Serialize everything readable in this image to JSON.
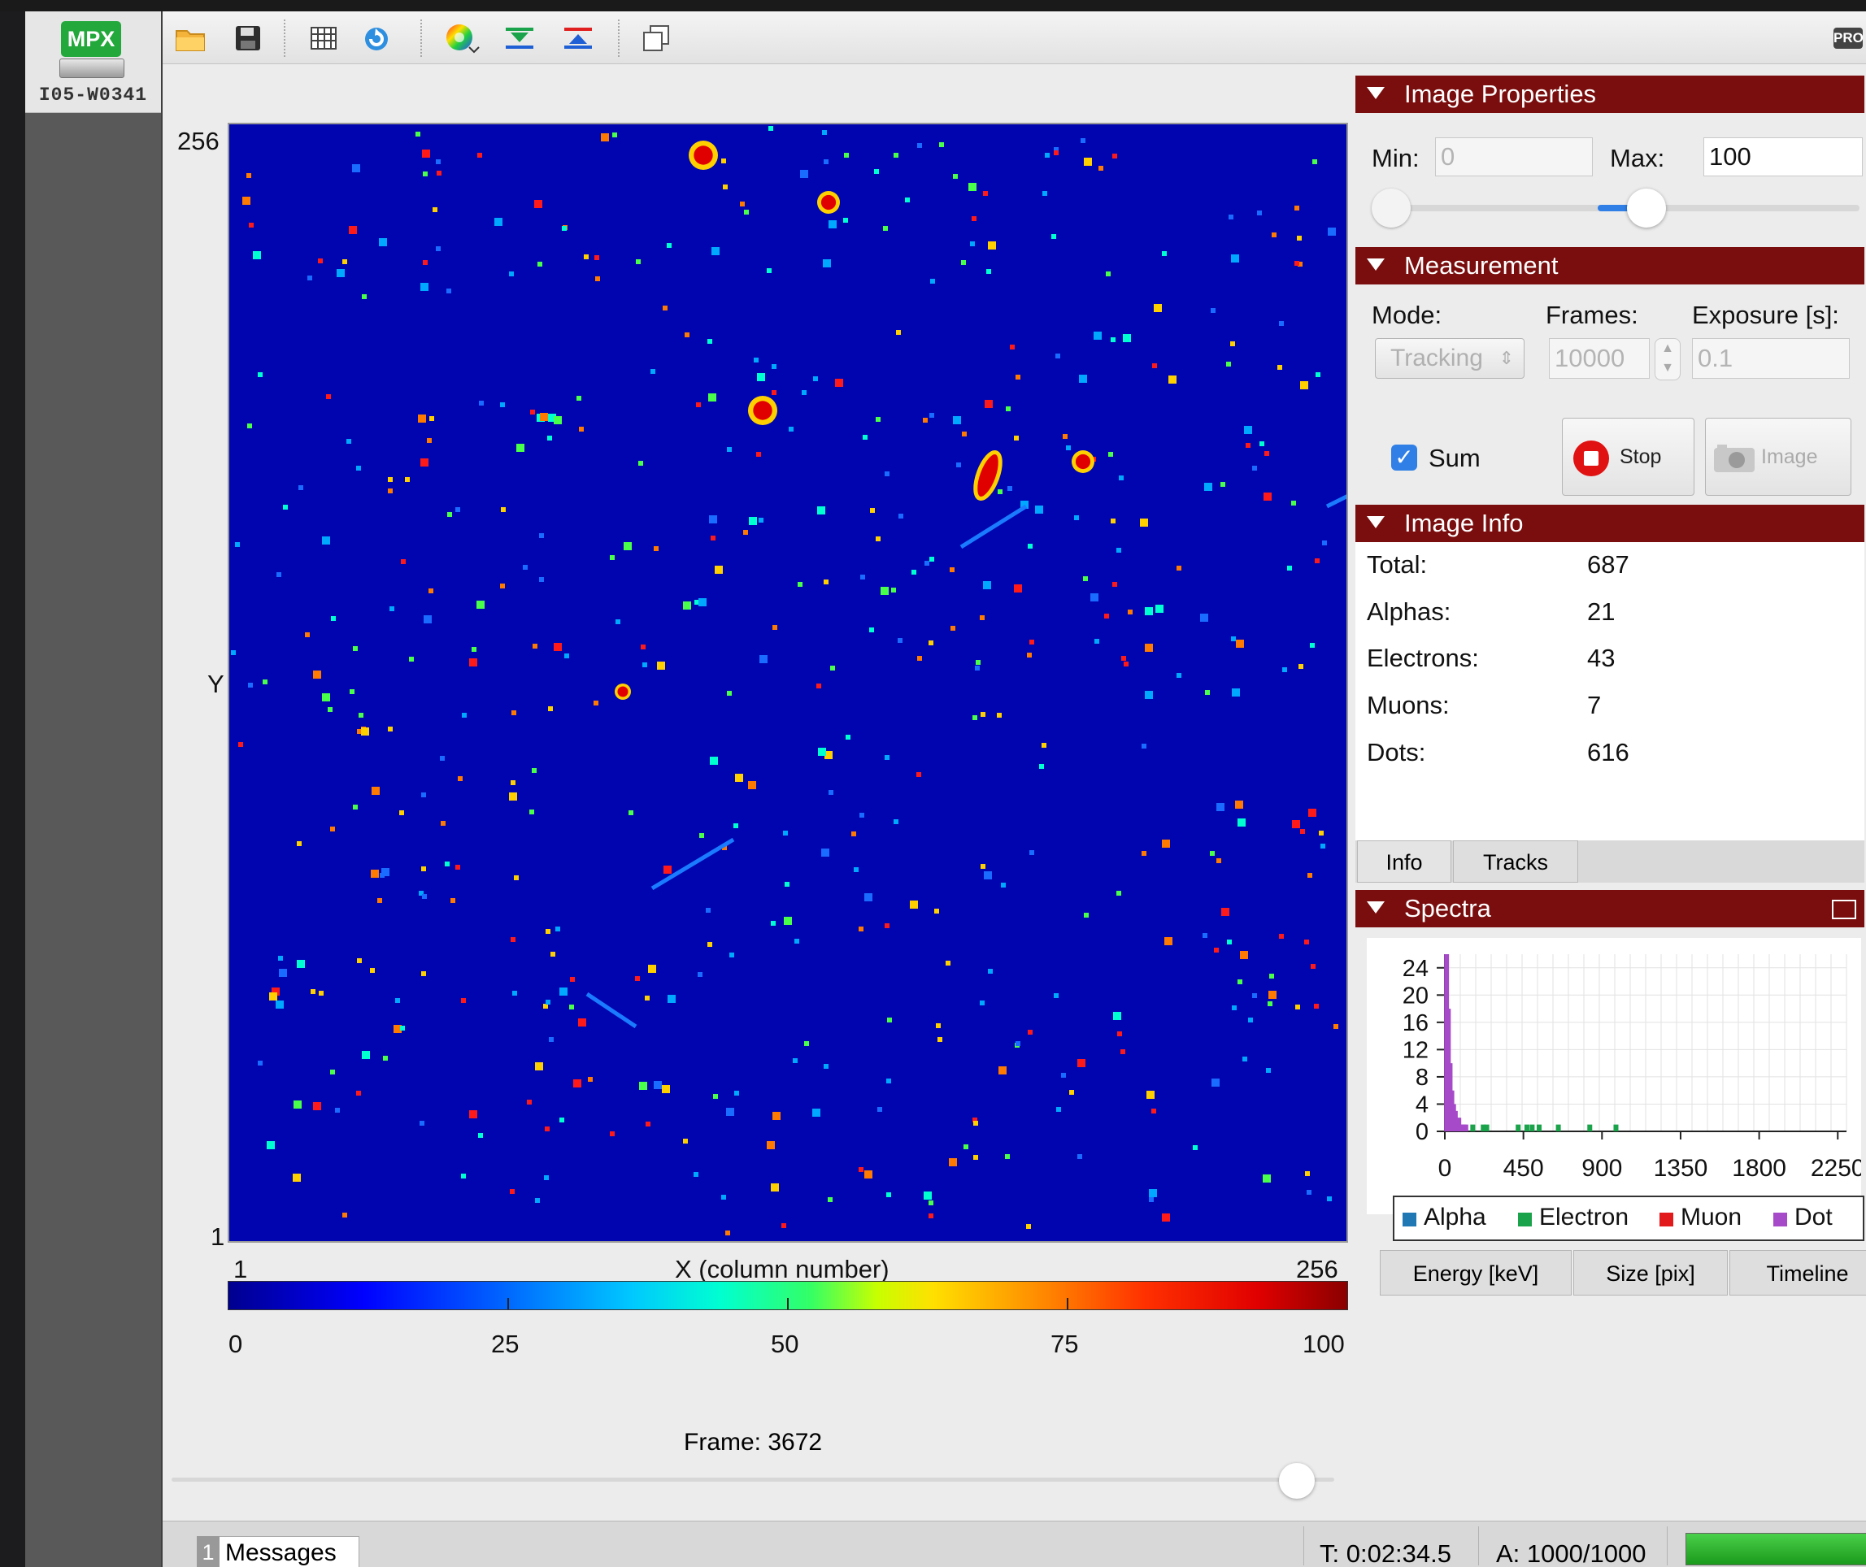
{
  "device": {
    "badge": "MPX",
    "id": "I05-W0341"
  },
  "toolbar": {
    "icons": [
      "open-folder-icon",
      "save-icon",
      "grid-icon",
      "refresh-icon",
      "color-map-icon",
      "fit-down-icon",
      "fit-up-icon",
      "copy-windows-icon"
    ],
    "pro_badge": "PRO"
  },
  "plot": {
    "y_max": "256",
    "y_min": "1",
    "y_label": "Y",
    "x_min": "1",
    "x_max": "256",
    "x_label": "X (column number)",
    "colorbar_ticks": [
      "0",
      "25",
      "50",
      "75",
      "100"
    ],
    "frame_label": "Frame: 3672",
    "frame_position": 0.968
  },
  "image_properties": {
    "title": "Image Properties",
    "min_label": "Min:",
    "min_value": "0",
    "max_label": "Max:",
    "max_value": "100",
    "range_low": 0.0,
    "range_high": 0.57
  },
  "measurement": {
    "title": "Measurement",
    "mode_label": "Mode:",
    "mode_value": "Tracking",
    "frames_label": "Frames:",
    "frames_value": "10000",
    "exposure_label": "Exposure [s]:",
    "exposure_value": "0.1",
    "sum_label": "Sum",
    "sum_checked": true,
    "stop_label": "Stop",
    "image_label": "Image"
  },
  "image_info": {
    "title": "Image Info",
    "rows": [
      {
        "label": "Total:",
        "value": "687"
      },
      {
        "label": "Alphas:",
        "value": "21"
      },
      {
        "label": "Electrons:",
        "value": "43"
      },
      {
        "label": "Muons:",
        "value": "7"
      },
      {
        "label": "Dots:",
        "value": "616"
      }
    ],
    "tabs": [
      "Info",
      "Tracks"
    ]
  },
  "spectra": {
    "title": "Spectra",
    "tabs": [
      "Energy [keV]",
      "Size [pix]",
      "Timeline"
    ],
    "legend": [
      {
        "name": "Alpha",
        "color": "#1f77b4"
      },
      {
        "name": "Electron",
        "color": "#1aa34a"
      },
      {
        "name": "Muon",
        "color": "#e31a1c"
      },
      {
        "name": "Dot",
        "color": "#a64ac9"
      }
    ],
    "chart_data": {
      "type": "bar",
      "yticks": [
        "24",
        "20",
        "16",
        "12",
        "8",
        "4",
        "0"
      ],
      "xticks": [
        "0",
        "450",
        "900",
        "1350",
        "1800",
        "2250"
      ],
      "ylim": [
        0,
        26
      ],
      "xlim": [
        0,
        2300
      ],
      "series": [
        {
          "name": "Dot",
          "x": [
            10,
            20,
            30,
            40,
            50,
            60,
            70,
            80,
            90,
            100,
            110,
            120
          ],
          "values": [
            26,
            18,
            10,
            6,
            4,
            3,
            2,
            2,
            1,
            1,
            1,
            1
          ]
        },
        {
          "name": "Electron",
          "x": [
            160,
            220,
            240,
            420,
            470,
            500,
            540,
            650,
            830,
            980
          ],
          "values": [
            1,
            1,
            1,
            1,
            1,
            1,
            1,
            1,
            1,
            1
          ]
        }
      ]
    }
  },
  "status": {
    "messages_count": "1",
    "messages_label": "Messages",
    "time": "T: 0:02:34.5",
    "acquired": "A: 1000/1000",
    "progress": 1.0
  }
}
